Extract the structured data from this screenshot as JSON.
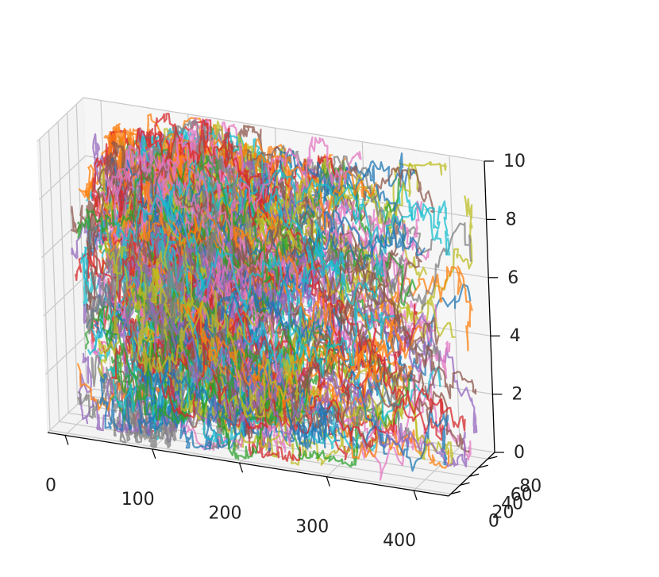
{
  "chart_data": {
    "type": "line3d",
    "title": "",
    "xlabel": "",
    "ylabel": "",
    "zlabel": "",
    "grid": true,
    "xlim": [
      -20,
      440
    ],
    "ylim": [
      -5,
      95
    ],
    "zlim": [
      0,
      10
    ],
    "x_ticks": [
      0,
      100,
      200,
      300,
      400
    ],
    "y_ticks": [
      0,
      20,
      40,
      60,
      80
    ],
    "z_ticks": [
      0,
      2,
      4,
      6,
      8,
      10
    ],
    "x_tick_labels": [
      "0",
      "100",
      "200",
      "300",
      "400"
    ],
    "y_tick_labels": [
      "0",
      "20",
      "40",
      "60",
      "80"
    ],
    "z_tick_labels": [
      "0",
      "2",
      "4",
      "6",
      "8",
      "10"
    ],
    "series_count": 200,
    "series_steps": 200,
    "x_step_mean": 1.1,
    "x_step_sd": 1.6,
    "y_step_sd": 2.0,
    "z_step_sd": 0.25,
    "start_x": [
      0,
      90
    ],
    "start_y": [
      10,
      90
    ],
    "start_z": [
      1,
      9
    ],
    "palette": [
      "#1f77b4",
      "#ff7f0e",
      "#2ca02c",
      "#d62728",
      "#9467bd",
      "#8c564b",
      "#e377c2",
      "#7f7f7f",
      "#bcbd22",
      "#17becf"
    ],
    "line_alpha": 0.75
  }
}
